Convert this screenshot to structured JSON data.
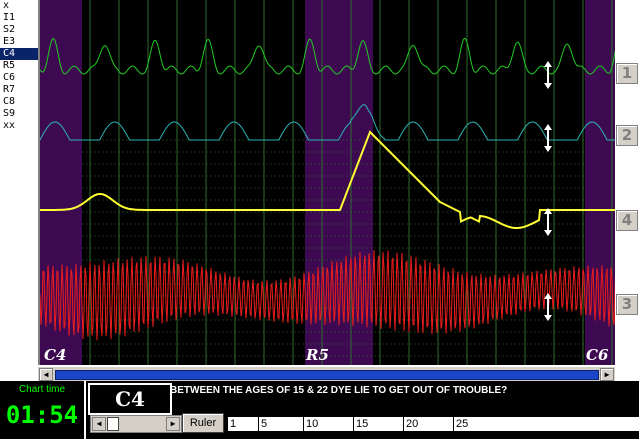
{
  "sidebar": {
    "items": [
      {
        "label": "x"
      },
      {
        "label": "I1"
      },
      {
        "label": "S2"
      },
      {
        "label": "E3"
      },
      {
        "label": "C4",
        "selected": true
      },
      {
        "label": "R5"
      },
      {
        "label": "C6"
      },
      {
        "label": "R7"
      },
      {
        "label": "C8"
      },
      {
        "label": "S9"
      },
      {
        "label": "xx"
      }
    ]
  },
  "chart": {
    "event_labels": [
      "C4",
      "R5",
      "C6"
    ],
    "channel_labels": [
      "1",
      "2",
      "4",
      "3"
    ],
    "colors": {
      "background": "#000000",
      "highlight": "#3d0a52",
      "grid": "#2e6b2e",
      "trace1": "#22cc22",
      "trace2": "#2ab5b5",
      "trace4": "#ffff33",
      "trace3": "#ee1c1c"
    }
  },
  "status": {
    "chart_time_label": "Chart time",
    "chart_time_value": "01:54",
    "current_event": "C4",
    "question": "BETWEEN THE AGES OF 15 & 22 DYE LIE TO GET OUT OF TROUBLE?"
  },
  "controls": {
    "ruler_label": "Ruler",
    "ruler_ticks": [
      "1",
      "5",
      "10",
      "15",
      "20",
      "25"
    ]
  }
}
